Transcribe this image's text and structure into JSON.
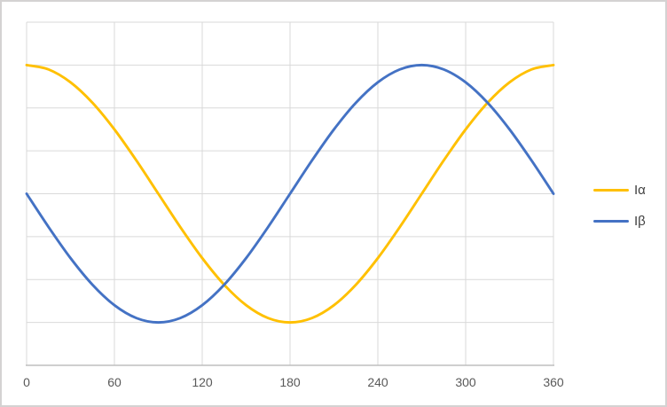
{
  "window": {
    "background_color": "#FFFFFF",
    "frame_border_color": "#D4D2D2"
  },
  "chart_data": {
    "type": "line",
    "title": "",
    "xlabel": "",
    "ylabel": "",
    "grid": true,
    "legend_position": "right",
    "x_ticks": [
      0,
      60,
      120,
      180,
      240,
      300,
      360
    ],
    "x_range": [
      0,
      360
    ],
    "y_range": [
      -4,
      4
    ],
    "y_gridlines": [
      -4,
      -3,
      -2,
      -1,
      0,
      1,
      2,
      3,
      4
    ],
    "y_axis_labels_visible": false,
    "x": [
      0,
      15,
      30,
      45,
      60,
      75,
      90,
      105,
      120,
      135,
      150,
      165,
      180,
      195,
      210,
      225,
      240,
      255,
      270,
      285,
      300,
      315,
      330,
      345,
      360
    ],
    "series": [
      {
        "name": "Iα",
        "color": "#FFC000",
        "values": [
          3,
          2.898,
          2.598,
          2.121,
          1.5,
          0.776,
          0,
          -0.776,
          -1.5,
          -2.121,
          -2.598,
          -2.898,
          -3,
          -2.898,
          -2.598,
          -2.121,
          -1.5,
          -0.776,
          0,
          0.776,
          1.5,
          2.121,
          2.598,
          2.898,
          3
        ]
      },
      {
        "name": "Iβ",
        "color": "#4472C4",
        "values": [
          0,
          -0.776,
          -1.5,
          -2.121,
          -2.598,
          -2.898,
          -3,
          -2.898,
          -2.598,
          -2.121,
          -1.5,
          -0.776,
          0,
          0.776,
          1.5,
          2.121,
          2.598,
          2.898,
          3,
          2.898,
          2.598,
          2.121,
          1.5,
          0.776,
          0
        ]
      }
    ],
    "gridline_color": "#D9D9D9",
    "axis_line_color": "#BFBFBF",
    "tick_label_color": "#595959",
    "legend_text_color": "#404040"
  }
}
